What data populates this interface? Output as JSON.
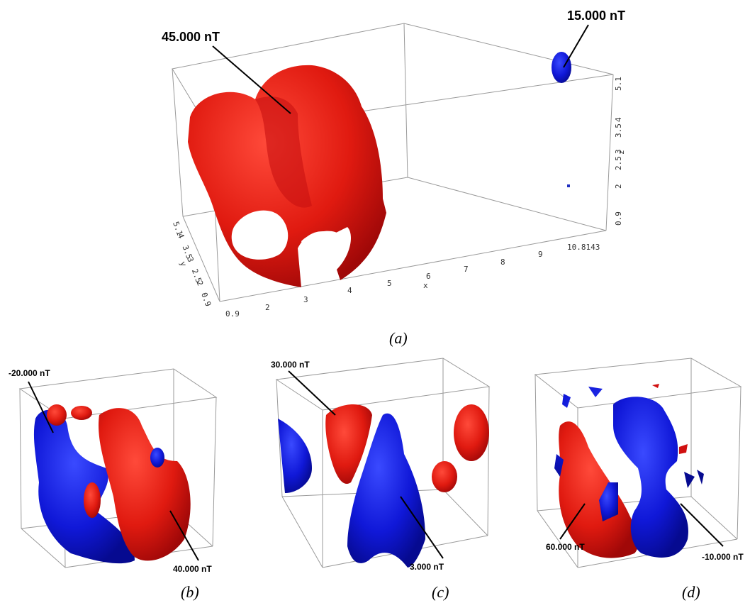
{
  "panels": [
    {
      "caption": "(a)",
      "annotations": [
        "45.000 nT",
        "15.000 nT"
      ],
      "x_axis": {
        "label": "x",
        "ticks": [
          "0.9",
          "2",
          "3",
          "4",
          "5",
          "6",
          "7",
          "8",
          "9",
          "10.8143"
        ]
      },
      "y_axis": {
        "label": "y",
        "ticks": [
          "5.1",
          "4",
          "3.5",
          "3",
          "2.5",
          "2",
          "0.9"
        ]
      },
      "z_axis": {
        "label": "z",
        "ticks": [
          "5.1",
          "4",
          "3.5",
          "3",
          "2.5",
          "2",
          "0.9"
        ]
      }
    },
    {
      "caption": "(b)",
      "annotations": [
        "-20.000 nT",
        "40.000 nT"
      ]
    },
    {
      "caption": "(c)",
      "annotations": [
        "30.000 nT",
        "3.000 nT"
      ]
    },
    {
      "caption": "(d)",
      "annotations": [
        "60.000 nT",
        "-10.000 nT"
      ]
    }
  ]
}
